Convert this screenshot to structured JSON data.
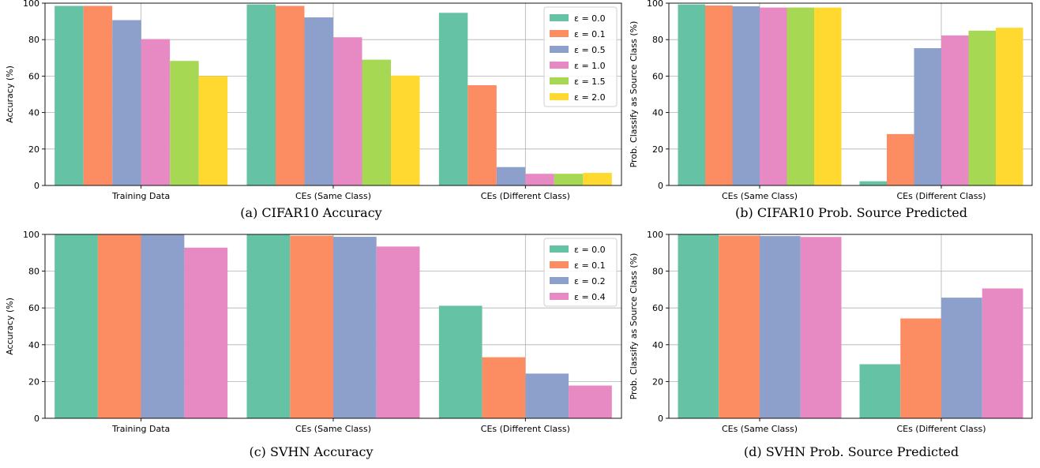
{
  "charts": [
    {
      "caption": "(a) CIFAR10 Accuracy",
      "ylabel": "Accuracy (%)",
      "show_legend": true,
      "legend_placement": "top-right",
      "chart_data": {
        "type": "bar",
        "categories": [
          "Training Data",
          "CEs (Same Class)",
          "CEs (Different Class)"
        ],
        "series": [
          {
            "name": "ε = 0.0",
            "values": [
              98.5,
              99.3,
              94.7
            ]
          },
          {
            "name": "ε = 0.1",
            "values": [
              98.5,
              98.5,
              55
            ]
          },
          {
            "name": "ε = 0.5",
            "values": [
              90.7,
              92.2,
              10.1
            ]
          },
          {
            "name": "ε = 1.0",
            "values": [
              80.3,
              81.3,
              6.4
            ]
          },
          {
            "name": "ε = 1.5",
            "values": [
              68.3,
              69.0,
              6.4
            ]
          },
          {
            "name": "ε = 2.0",
            "values": [
              60.0,
              60.3,
              6.9
            ]
          }
        ],
        "ylim": [
          0,
          100
        ],
        "yticks": [
          0,
          20,
          40,
          60,
          80,
          100
        ],
        "grid": true
      }
    },
    {
      "caption": "(b) CIFAR10 Prob. Source Predicted",
      "ylabel": "Prob. Classify as Source Class (%)",
      "show_legend": false,
      "chart_data": {
        "type": "bar",
        "categories": [
          "CEs (Same Class)",
          "CEs (Different Class)"
        ],
        "series": [
          {
            "name": "ε = 0.0",
            "values": [
              99.3,
              2.3
            ]
          },
          {
            "name": "ε = 0.1",
            "values": [
              98.7,
              28.2
            ]
          },
          {
            "name": "ε = 0.5",
            "values": [
              98.3,
              75.3
            ]
          },
          {
            "name": "ε = 1.0",
            "values": [
              97.6,
              82.3
            ]
          },
          {
            "name": "ε = 1.5",
            "values": [
              97.6,
              84.9
            ]
          },
          {
            "name": "ε = 2.0",
            "values": [
              97.6,
              86.5
            ]
          }
        ],
        "ylim": [
          0,
          100
        ],
        "yticks": [
          0,
          20,
          40,
          60,
          80,
          100
        ],
        "grid": true
      }
    },
    {
      "caption": "(c) SVHN Accuracy",
      "ylabel": "Accuracy (%)",
      "show_legend": true,
      "legend_placement": "top-right",
      "chart_data": {
        "type": "bar",
        "categories": [
          "Training Data",
          "CEs (Same Class)",
          "CEs (Different Class)"
        ],
        "series": [
          {
            "name": "ε = 0.0",
            "values": [
              99.8,
              99.9,
              61.2
            ]
          },
          {
            "name": "ε = 0.1",
            "values": [
              99.8,
              99.3,
              33.2
            ]
          },
          {
            "name": "ε = 0.2",
            "values": [
              99.8,
              98.7,
              24.3
            ]
          },
          {
            "name": "ε = 0.4",
            "values": [
              92.8,
              93.4,
              17.8
            ]
          }
        ],
        "ylim": [
          0,
          100
        ],
        "yticks": [
          0,
          20,
          40,
          60,
          80,
          100
        ],
        "grid": true
      }
    },
    {
      "caption": "(d) SVHN Prob. Source Predicted",
      "ylabel": "Prob. Classify as Source Class (%)",
      "show_legend": false,
      "chart_data": {
        "type": "bar",
        "categories": [
          "CEs (Same Class)",
          "CEs (Different Class)"
        ],
        "series": [
          {
            "name": "ε = 0.0",
            "values": [
              99.9,
              29.4
            ]
          },
          {
            "name": "ε = 0.1",
            "values": [
              99.3,
              54.3
            ]
          },
          {
            "name": "ε = 0.2",
            "values": [
              99.1,
              65.6
            ]
          },
          {
            "name": "ε = 0.4",
            "values": [
              98.6,
              70.6
            ]
          }
        ],
        "ylim": [
          0,
          100
        ],
        "yticks": [
          0,
          20,
          40,
          60,
          80,
          100
        ],
        "grid": true
      }
    }
  ],
  "palette": [
    "#66c2a5",
    "#fc8d62",
    "#8da0cb",
    "#e78ac3",
    "#a6d854",
    "#ffd92f"
  ]
}
